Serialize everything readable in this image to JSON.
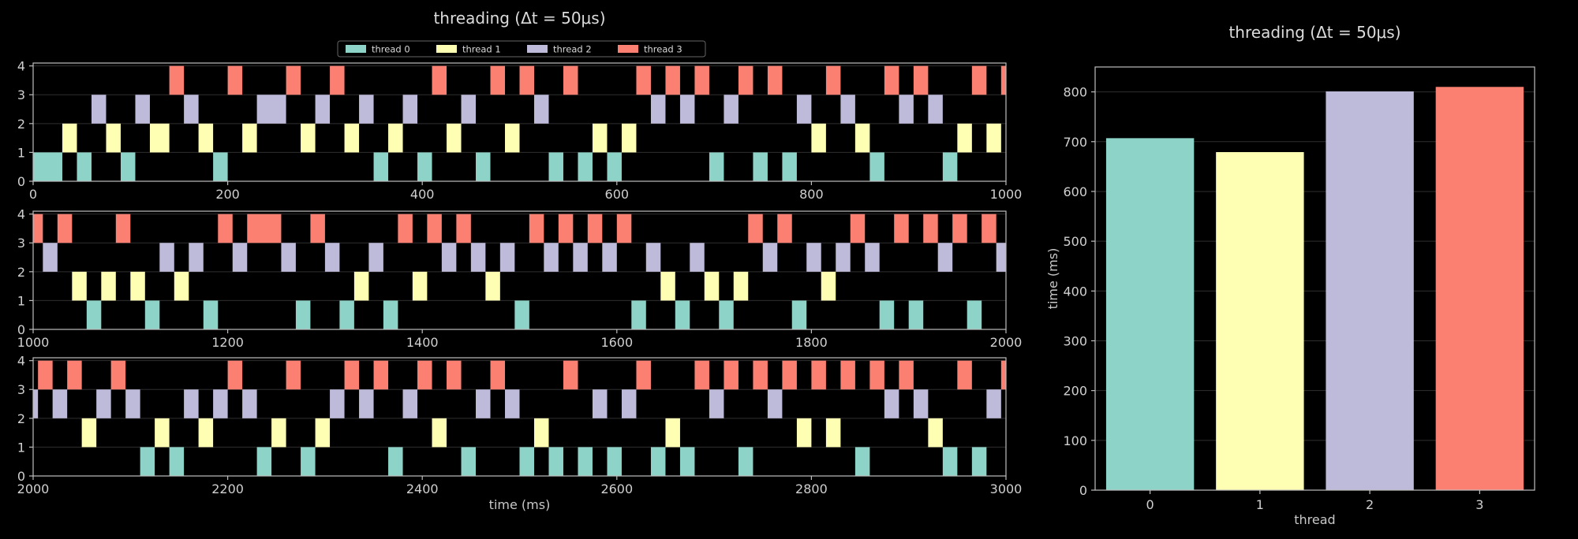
{
  "colors": {
    "thread 0": "#8dd3c7",
    "thread 1": "#ffffb3",
    "thread 2": "#bebada",
    "thread 3": "#fb8072"
  },
  "chart_data": [
    {
      "type": "timeline",
      "title": "threading (Δt = 50μs)",
      "xlabel": "time (ms)",
      "legend": {
        "position": "top-center",
        "entries": [
          "thread 0",
          "thread 1",
          "thread 2",
          "thread 3"
        ]
      },
      "yticks": [
        0,
        1,
        2,
        3,
        4
      ],
      "panels": [
        {
          "xlim": [
            0,
            1000
          ],
          "xticks": [
            0,
            200,
            400,
            600,
            800,
            1000
          ],
          "blocks": [
            [
              0,
              30,
              0
            ],
            [
              30,
              45,
              1
            ],
            [
              45,
              60,
              0
            ],
            [
              60,
              75,
              2
            ],
            [
              75,
              90,
              1
            ],
            [
              90,
              105,
              0
            ],
            [
              105,
              120,
              2
            ],
            [
              120,
              140,
              1
            ],
            [
              140,
              155,
              3
            ],
            [
              155,
              170,
              2
            ],
            [
              170,
              185,
              1
            ],
            [
              185,
              200,
              0
            ],
            [
              200,
              215,
              3
            ],
            [
              215,
              230,
              1
            ],
            [
              230,
              260,
              2
            ],
            [
              260,
              275,
              3
            ],
            [
              275,
              290,
              1
            ],
            [
              290,
              305,
              2
            ],
            [
              305,
              320,
              3
            ],
            [
              320,
              335,
              1
            ],
            [
              335,
              350,
              2
            ],
            [
              350,
              365,
              0
            ],
            [
              365,
              380,
              1
            ],
            [
              380,
              395,
              2
            ],
            [
              395,
              410,
              0
            ],
            [
              410,
              425,
              3
            ],
            [
              425,
              440,
              1
            ],
            [
              440,
              455,
              2
            ],
            [
              455,
              470,
              0
            ],
            [
              470,
              485,
              3
            ],
            [
              485,
              500,
              1
            ],
            [
              500,
              515,
              3
            ],
            [
              515,
              530,
              2
            ],
            [
              530,
              545,
              0
            ],
            [
              545,
              560,
              3
            ],
            [
              560,
              575,
              0
            ],
            [
              575,
              590,
              1
            ],
            [
              590,
              605,
              0
            ],
            [
              605,
              620,
              1
            ],
            [
              620,
              635,
              3
            ],
            [
              635,
              650,
              2
            ],
            [
              650,
              665,
              3
            ],
            [
              665,
              680,
              2
            ],
            [
              680,
              695,
              3
            ],
            [
              695,
              710,
              0
            ],
            [
              710,
              725,
              2
            ],
            [
              725,
              740,
              3
            ],
            [
              740,
              755,
              0
            ],
            [
              755,
              770,
              3
            ],
            [
              770,
              785,
              0
            ],
            [
              785,
              800,
              2
            ],
            [
              800,
              815,
              1
            ],
            [
              815,
              830,
              3
            ],
            [
              830,
              845,
              2
            ],
            [
              845,
              860,
              1
            ],
            [
              860,
              875,
              0
            ],
            [
              875,
              890,
              3
            ],
            [
              890,
              905,
              2
            ],
            [
              905,
              920,
              3
            ],
            [
              920,
              935,
              2
            ],
            [
              935,
              950,
              0
            ],
            [
              950,
              965,
              1
            ],
            [
              965,
              980,
              3
            ],
            [
              980,
              995,
              1
            ],
            [
              995,
              1000,
              3
            ]
          ]
        },
        {
          "xlim": [
            1000,
            2000
          ],
          "xticks": [
            1000,
            1200,
            1400,
            1600,
            1800,
            2000
          ],
          "blocks": [
            [
              1000,
              1010,
              3
            ],
            [
              1010,
              1025,
              2
            ],
            [
              1025,
              1040,
              3
            ],
            [
              1040,
              1055,
              1
            ],
            [
              1055,
              1070,
              0
            ],
            [
              1070,
              1085,
              1
            ],
            [
              1085,
              1100,
              3
            ],
            [
              1100,
              1115,
              1
            ],
            [
              1115,
              1130,
              0
            ],
            [
              1130,
              1145,
              2
            ],
            [
              1145,
              1160,
              1
            ],
            [
              1160,
              1175,
              2
            ],
            [
              1175,
              1190,
              0
            ],
            [
              1190,
              1205,
              3
            ],
            [
              1205,
              1220,
              2
            ],
            [
              1220,
              1255,
              3
            ],
            [
              1255,
              1270,
              2
            ],
            [
              1270,
              1285,
              0
            ],
            [
              1285,
              1300,
              3
            ],
            [
              1300,
              1315,
              2
            ],
            [
              1315,
              1330,
              0
            ],
            [
              1330,
              1345,
              1
            ],
            [
              1345,
              1360,
              2
            ],
            [
              1360,
              1375,
              0
            ],
            [
              1375,
              1390,
              3
            ],
            [
              1390,
              1405,
              1
            ],
            [
              1405,
              1420,
              3
            ],
            [
              1420,
              1435,
              2
            ],
            [
              1435,
              1450,
              3
            ],
            [
              1450,
              1465,
              2
            ],
            [
              1465,
              1480,
              1
            ],
            [
              1480,
              1495,
              2
            ],
            [
              1495,
              1510,
              0
            ],
            [
              1510,
              1525,
              3
            ],
            [
              1525,
              1540,
              2
            ],
            [
              1540,
              1555,
              3
            ],
            [
              1555,
              1570,
              2
            ],
            [
              1570,
              1585,
              3
            ],
            [
              1585,
              1600,
              2
            ],
            [
              1600,
              1615,
              3
            ],
            [
              1615,
              1630,
              0
            ],
            [
              1630,
              1645,
              2
            ],
            [
              1645,
              1660,
              1
            ],
            [
              1660,
              1675,
              0
            ],
            [
              1675,
              1690,
              2
            ],
            [
              1690,
              1705,
              1
            ],
            [
              1705,
              1720,
              0
            ],
            [
              1720,
              1735,
              1
            ],
            [
              1735,
              1750,
              3
            ],
            [
              1750,
              1765,
              2
            ],
            [
              1765,
              1780,
              3
            ],
            [
              1780,
              1795,
              0
            ],
            [
              1795,
              1810,
              2
            ],
            [
              1810,
              1825,
              1
            ],
            [
              1825,
              1840,
              2
            ],
            [
              1840,
              1855,
              3
            ],
            [
              1855,
              1870,
              2
            ],
            [
              1870,
              1885,
              0
            ],
            [
              1885,
              1900,
              3
            ],
            [
              1900,
              1915,
              0
            ],
            [
              1915,
              1930,
              3
            ],
            [
              1930,
              1945,
              2
            ],
            [
              1945,
              1960,
              3
            ],
            [
              1960,
              1975,
              0
            ],
            [
              1975,
              1990,
              3
            ],
            [
              1990,
              2000,
              2
            ]
          ]
        },
        {
          "xlim": [
            2000,
            3000
          ],
          "xticks": [
            2000,
            2200,
            2400,
            2600,
            2800,
            3000
          ],
          "blocks": [
            [
              2000,
              2005,
              2
            ],
            [
              2005,
              2020,
              3
            ],
            [
              2020,
              2035,
              2
            ],
            [
              2035,
              2050,
              3
            ],
            [
              2050,
              2065,
              1
            ],
            [
              2065,
              2080,
              2
            ],
            [
              2080,
              2095,
              3
            ],
            [
              2095,
              2110,
              2
            ],
            [
              2110,
              2125,
              0
            ],
            [
              2125,
              2140,
              1
            ],
            [
              2140,
              2155,
              0
            ],
            [
              2155,
              2170,
              2
            ],
            [
              2170,
              2185,
              1
            ],
            [
              2185,
              2200,
              2
            ],
            [
              2200,
              2215,
              3
            ],
            [
              2215,
              2230,
              2
            ],
            [
              2230,
              2245,
              0
            ],
            [
              2245,
              2260,
              1
            ],
            [
              2260,
              2275,
              3
            ],
            [
              2275,
              2290,
              0
            ],
            [
              2290,
              2305,
              1
            ],
            [
              2305,
              2320,
              2
            ],
            [
              2320,
              2335,
              3
            ],
            [
              2335,
              2350,
              2
            ],
            [
              2350,
              2365,
              3
            ],
            [
              2365,
              2380,
              0
            ],
            [
              2380,
              2395,
              2
            ],
            [
              2395,
              2410,
              3
            ],
            [
              2410,
              2425,
              1
            ],
            [
              2425,
              2440,
              3
            ],
            [
              2440,
              2455,
              0
            ],
            [
              2455,
              2470,
              2
            ],
            [
              2470,
              2485,
              3
            ],
            [
              2485,
              2500,
              2
            ],
            [
              2500,
              2515,
              0
            ],
            [
              2515,
              2530,
              1
            ],
            [
              2530,
              2545,
              0
            ],
            [
              2545,
              2560,
              3
            ],
            [
              2560,
              2575,
              0
            ],
            [
              2575,
              2590,
              2
            ],
            [
              2590,
              2605,
              0
            ],
            [
              2605,
              2620,
              2
            ],
            [
              2620,
              2635,
              3
            ],
            [
              2635,
              2650,
              0
            ],
            [
              2650,
              2665,
              1
            ],
            [
              2665,
              2680,
              0
            ],
            [
              2680,
              2695,
              3
            ],
            [
              2695,
              2710,
              2
            ],
            [
              2710,
              2725,
              3
            ],
            [
              2725,
              2740,
              0
            ],
            [
              2740,
              2755,
              3
            ],
            [
              2755,
              2770,
              2
            ],
            [
              2770,
              2785,
              3
            ],
            [
              2785,
              2800,
              1
            ],
            [
              2800,
              2815,
              3
            ],
            [
              2815,
              2830,
              1
            ],
            [
              2830,
              2845,
              3
            ],
            [
              2845,
              2860,
              0
            ],
            [
              2860,
              2875,
              3
            ],
            [
              2875,
              2890,
              2
            ],
            [
              2890,
              2905,
              3
            ],
            [
              2905,
              2920,
              2
            ],
            [
              2920,
              2935,
              1
            ],
            [
              2935,
              2950,
              0
            ],
            [
              2950,
              2965,
              3
            ],
            [
              2965,
              2980,
              0
            ],
            [
              2980,
              2995,
              2
            ],
            [
              2995,
              3000,
              3
            ]
          ]
        }
      ]
    },
    {
      "type": "bar",
      "title": "threading (Δt = 50μs)",
      "categories": [
        "0",
        "1",
        "2",
        "3"
      ],
      "values": [
        707,
        679,
        801,
        810
      ],
      "xlabel": "thread",
      "ylabel": "time (ms)",
      "ylim": [
        0,
        850
      ],
      "yticks": [
        0,
        100,
        200,
        300,
        400,
        500,
        600,
        700,
        800
      ]
    }
  ]
}
